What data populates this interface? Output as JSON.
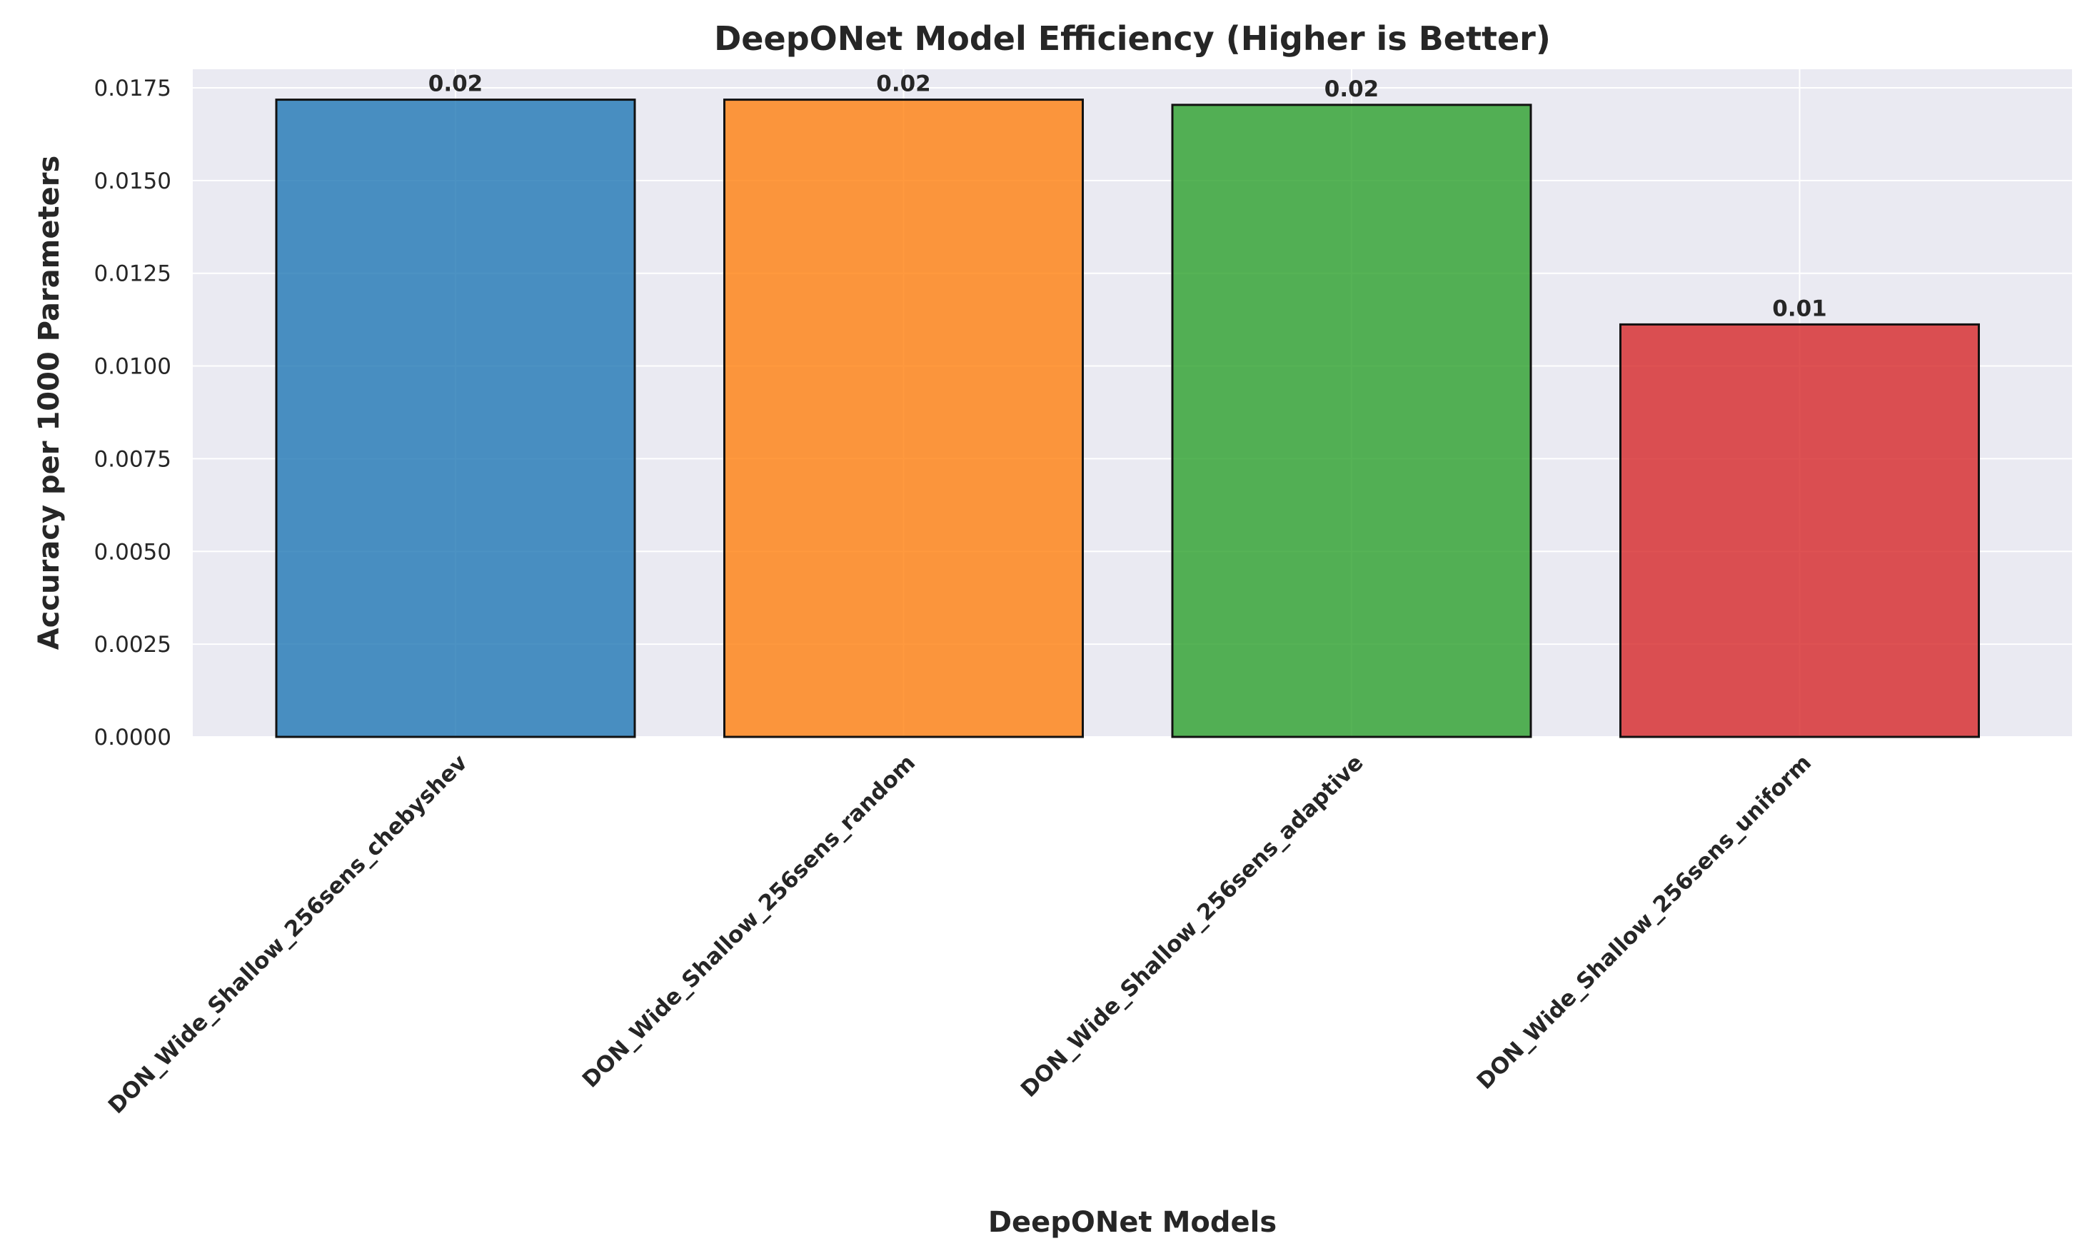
{
  "chart_data": {
    "type": "bar",
    "title": "DeepONet Model Efficiency (Higher is Better)",
    "xlabel": "DeepONet Models",
    "ylabel": "Accuracy per 1000 Parameters",
    "categories": [
      "DON_Wide_Shallow_256sens_chebyshev",
      "DON_Wide_Shallow_256sens_random",
      "DON_Wide_Shallow_256sens_adaptive",
      "DON_Wide_Shallow_256sens_uniform"
    ],
    "values": [
      0.01718,
      0.01718,
      0.01704,
      0.01112
    ],
    "data_labels": [
      "0.02",
      "0.02",
      "0.02",
      "0.01"
    ],
    "colors": [
      "#1f77b4",
      "#ff7f0e",
      "#2ca02c",
      "#d62728"
    ],
    "ylim": [
      0,
      0.018
    ],
    "yticks": [
      0,
      0.0025,
      0.005,
      0.0075,
      0.01,
      0.0125,
      0.015,
      0.0175
    ],
    "ytick_labels": [
      "0.0000",
      "0.0025",
      "0.0050",
      "0.0075",
      "0.0100",
      "0.0125",
      "0.0150",
      "0.0175"
    ],
    "grid": true,
    "background": "#eaeaf2"
  }
}
